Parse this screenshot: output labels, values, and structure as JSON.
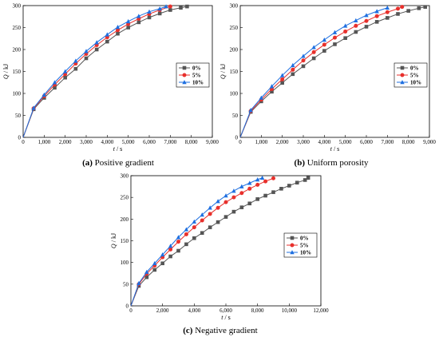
{
  "chart_data": [
    {
      "type": "line",
      "caption_label": "(a)",
      "caption_text": "Positive gradient",
      "xlabel_var": "t",
      "xlabel_unit": "s",
      "ylabel_var": "Q",
      "ylabel_unit": "kJ",
      "xlim": [
        0,
        9000
      ],
      "ylim": [
        0,
        300
      ],
      "xticks": [
        0,
        1000,
        2000,
        3000,
        4000,
        5000,
        6000,
        7000,
        8000,
        9000
      ],
      "xtick_labels": [
        "0",
        "1,000",
        "2,000",
        "3,000",
        "4,000",
        "5,000",
        "6,000",
        "7,000",
        "8,000",
        "9,000"
      ],
      "yticks": [
        0,
        50,
        100,
        150,
        200,
        250,
        300
      ],
      "ytick_labels": [
        "0",
        "50",
        "100",
        "150",
        "200",
        "250",
        "300"
      ],
      "legend_position": "right",
      "series": [
        {
          "name": "0%",
          "color": "#555555",
          "marker": "square",
          "x": [
            0,
            500,
            1000,
            1500,
            2000,
            2500,
            3000,
            3500,
            4000,
            4500,
            5000,
            5500,
            6000,
            6500,
            7000,
            7500,
            7800
          ],
          "y": [
            0,
            64,
            90,
            113,
            136,
            156,
            180,
            200,
            218,
            236,
            250,
            262,
            273,
            282,
            290,
            295,
            298
          ]
        },
        {
          "name": "5%",
          "color": "#e8302c",
          "marker": "circle",
          "x": [
            0,
            500,
            1000,
            1500,
            2000,
            2500,
            3000,
            3500,
            4000,
            4500,
            5000,
            5500,
            6000,
            6500,
            7000
          ],
          "y": [
            0,
            66,
            94,
            120,
            144,
            168,
            190,
            210,
            228,
            244,
            258,
            270,
            281,
            290,
            298
          ]
        },
        {
          "name": "10%",
          "color": "#1e6fe0",
          "marker": "triangle",
          "x": [
            0,
            500,
            1000,
            1500,
            2000,
            2500,
            3000,
            3500,
            4000,
            4500,
            5000,
            5500,
            6000,
            6500,
            6800
          ],
          "y": [
            0,
            67,
            97,
            125,
            150,
            174,
            196,
            216,
            234,
            251,
            264,
            276,
            286,
            293,
            298
          ]
        }
      ]
    },
    {
      "type": "line",
      "caption_label": "(b)",
      "caption_text": "Uniform porosity",
      "xlabel_var": "t",
      "xlabel_unit": "s",
      "ylabel_var": "Q",
      "ylabel_unit": "kJ",
      "xlim": [
        0,
        9000
      ],
      "ylim": [
        0,
        300
      ],
      "xticks": [
        0,
        1000,
        2000,
        3000,
        4000,
        5000,
        6000,
        7000,
        8000,
        9000
      ],
      "xtick_labels": [
        "0",
        "1,000",
        "2,000",
        "3,000",
        "4,000",
        "5,000",
        "6,000",
        "7,000",
        "8,000",
        "9,000"
      ],
      "yticks": [
        0,
        50,
        100,
        150,
        200,
        250,
        300
      ],
      "ytick_labels": [
        "0",
        "50",
        "100",
        "150",
        "200",
        "250",
        "300"
      ],
      "legend_position": "right",
      "series": [
        {
          "name": "0%",
          "color": "#555555",
          "marker": "square",
          "x": [
            0,
            500,
            1000,
            1500,
            2000,
            2500,
            3000,
            3500,
            4000,
            4500,
            5000,
            5500,
            6000,
            6500,
            7000,
            7500,
            8000,
            8500,
            8800
          ],
          "y": [
            0,
            58,
            82,
            104,
            124,
            144,
            162,
            180,
            197,
            212,
            226,
            240,
            252,
            263,
            272,
            281,
            288,
            294,
            297
          ]
        },
        {
          "name": "5%",
          "color": "#e8302c",
          "marker": "circle",
          "x": [
            0,
            500,
            1000,
            1500,
            2000,
            2500,
            3000,
            3500,
            4000,
            4500,
            5000,
            5500,
            6000,
            6500,
            7000,
            7500,
            7700
          ],
          "y": [
            0,
            60,
            86,
            110,
            132,
            154,
            175,
            194,
            211,
            227,
            241,
            254,
            265,
            276,
            285,
            293,
            297
          ]
        },
        {
          "name": "10%",
          "color": "#1e6fe0",
          "marker": "triangle",
          "x": [
            0,
            500,
            1000,
            1500,
            2000,
            2500,
            3000,
            3500,
            4000,
            4500,
            5000,
            5500,
            6000,
            6500,
            7000
          ],
          "y": [
            0,
            62,
            90,
            116,
            141,
            164,
            185,
            205,
            222,
            239,
            254,
            266,
            278,
            287,
            295
          ]
        }
      ]
    },
    {
      "type": "line",
      "caption_label": "(c)",
      "caption_text": "Negative gradient",
      "xlabel_var": "t",
      "xlabel_unit": "s",
      "ylabel_var": "Q",
      "ylabel_unit": "kJ",
      "xlim": [
        0,
        12000
      ],
      "ylim": [
        0,
        300
      ],
      "xticks": [
        0,
        2000,
        4000,
        6000,
        8000,
        10000,
        12000
      ],
      "xtick_labels": [
        "0",
        "2,000",
        "4,000",
        "6,000",
        "8,000",
        "10,000",
        "12,000"
      ],
      "yticks": [
        0,
        50,
        100,
        150,
        200,
        250,
        300
      ],
      "ytick_labels": [
        "0",
        "50",
        "100",
        "150",
        "200",
        "250",
        "300"
      ],
      "legend_position": "right",
      "series": [
        {
          "name": "0%",
          "color": "#555555",
          "marker": "square",
          "x": [
            0,
            500,
            1000,
            1500,
            2000,
            2500,
            3000,
            3500,
            4000,
            4500,
            5000,
            5500,
            6000,
            6500,
            7000,
            7500,
            8000,
            8500,
            9000,
            9500,
            10000,
            10500,
            11000,
            11200
          ],
          "y": [
            0,
            46,
            66,
            83,
            98,
            114,
            127,
            142,
            156,
            168,
            181,
            193,
            205,
            217,
            227,
            236,
            246,
            254,
            262,
            270,
            277,
            284,
            290,
            295
          ]
        },
        {
          "name": "5%",
          "color": "#e8302c",
          "marker": "circle",
          "x": [
            0,
            500,
            1000,
            1500,
            2000,
            2500,
            3000,
            3500,
            4000,
            4500,
            5000,
            5500,
            6000,
            6500,
            7000,
            7500,
            8000,
            8500,
            9000
          ],
          "y": [
            0,
            50,
            74,
            93,
            112,
            130,
            148,
            165,
            181,
            197,
            212,
            226,
            239,
            250,
            260,
            270,
            279,
            287,
            294
          ]
        },
        {
          "name": "10%",
          "color": "#1e6fe0",
          "marker": "triangle",
          "x": [
            0,
            500,
            1000,
            1500,
            2000,
            2500,
            3000,
            3500,
            4000,
            4500,
            5000,
            5500,
            6000,
            6500,
            7000,
            7500,
            8000,
            8300
          ],
          "y": [
            0,
            52,
            78,
            98,
            118,
            138,
            158,
            176,
            194,
            210,
            226,
            241,
            254,
            265,
            275,
            283,
            291,
            295
          ]
        }
      ]
    }
  ]
}
